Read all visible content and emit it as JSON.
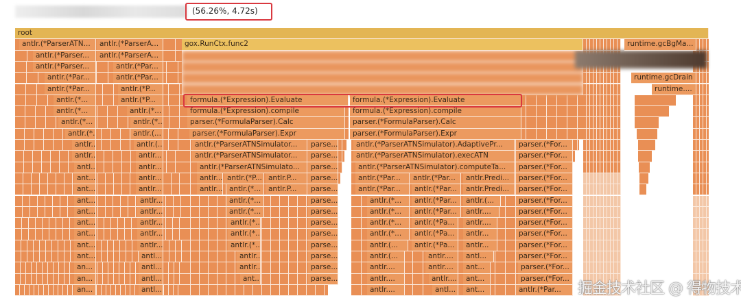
{
  "header": {
    "selection_info": "(56.26%, 4.72s)"
  },
  "watermark": "掘金技术社区 @ 得物技术",
  "colors": {
    "root": "#e3b554",
    "yellow": "#ecc15f",
    "orange": "#ec9a5f",
    "filler": "#e98f55",
    "light": "#f3c7a7",
    "highlight": "#d9383f"
  },
  "frames": [
    "root",
    "antlr.(*ParserATN...",
    "antlr.(*ParserA...",
    "gox.RunCtx.func2",
    "runtime.gcBgMa...",
    "antlr.(*Parser...",
    "antlr.(*ParserA...",
    "antlr.(*Parser...",
    "antlr.(*Par...",
    "antlr.(*Par...",
    "antlr.(*Par...",
    "runtime.gcDrain",
    "antlr.(*Par...",
    "antlr.(*P...",
    "runtime....",
    "antlr.(*...",
    "antlr.(*P...",
    "formula.(*Expression).Evaluate",
    "formula.(*Expression).Evaluate",
    "antlr.(*...",
    "antlr.(*...",
    "formula.(*Expression).compile",
    "formula.(*Expression).compile",
    "antlr.(*...",
    "antlr.(*...",
    "parser.(*FormulaParser).Calc",
    "parser.(*FormulaParser).Calc",
    "antlr.(*...",
    "antlr.(...",
    "parser.(*FormulaParser).Expr",
    "parser.(*FormulaParser).Expr",
    "antlr....",
    "antlr.(...",
    "antlr.(*ParserATNSimulator...",
    "parse...",
    "antlr.(*ParserATNSimulator).AdaptivePr...",
    "parser.(*For...",
    "antlr....",
    "antlr...",
    "antlr.(*ParserATNSimulator...",
    "parse...",
    "antlr.(*ParserATNSimulator).execATN",
    "parser.(*For...",
    "antl...",
    "antlr...",
    "antlr.(*ParserATNSimulato...",
    "parse...",
    "antlr.(*ParserATNSimulator).computeTa...",
    "parser.(*For...",
    "ant...",
    "antlr...",
    "antlr...",
    "antlr.(*P...",
    "antlr.P...",
    "parse...",
    "antlr.(*Par...",
    "antlr.(*Par...",
    "antlr.Predi...",
    "parser.(*For...",
    "ant...",
    "antlr...",
    "antlr...",
    "antlr.(*...",
    "antlr.P...",
    "parse...",
    "antlr.(*Par...",
    "antlr.(*Par...",
    "antlr.Predi...",
    "parser.(*For...",
    "ant...",
    "antlr...",
    "antlr.(*...",
    "parse...",
    "antlr.(*...",
    "antlr.(*Par...",
    "antlr.(...",
    "parser.(*For...",
    "ant...",
    "antlr...",
    "antlr.(*...",
    "parse...",
    "antlr.(*...",
    "antlr.(*Par...",
    "antlr....",
    "parser.(*For...",
    "ant...",
    "antlr...",
    "antlr.(*...",
    "parse...",
    "antlr.(*...",
    "antlr.(*Pa...",
    "antlr....",
    "parser.(*For...",
    "ant...",
    "antlr...",
    "antlr.(*...",
    "parse...",
    "antlr.(*...",
    "antlr.(*Pa...",
    "antlr...",
    "parser.(*For...",
    "ant...",
    "antlr...",
    "antlr.(*...",
    "parse...",
    "antlr.(...",
    "antlr.(*Pa...",
    "antlr...",
    "parser.(*For...",
    "ant...",
    "antl...",
    "antlr...",
    "parse...",
    "antlr.(...",
    "antlr....",
    "antl...",
    "parser.(*For...",
    "an...",
    "antl...",
    "antlr...",
    "parse...",
    "antlr....",
    "antlr....",
    "ant...",
    "parser.(*For...",
    "an...",
    "antl...",
    "ant...",
    "parse...",
    "antlr....",
    "antlr....",
    "ant...",
    "parser.(*For...",
    "an...",
    "antl...",
    "antlr....",
    "antl...",
    "ant...",
    "antlr.(*Par..."
  ]
}
